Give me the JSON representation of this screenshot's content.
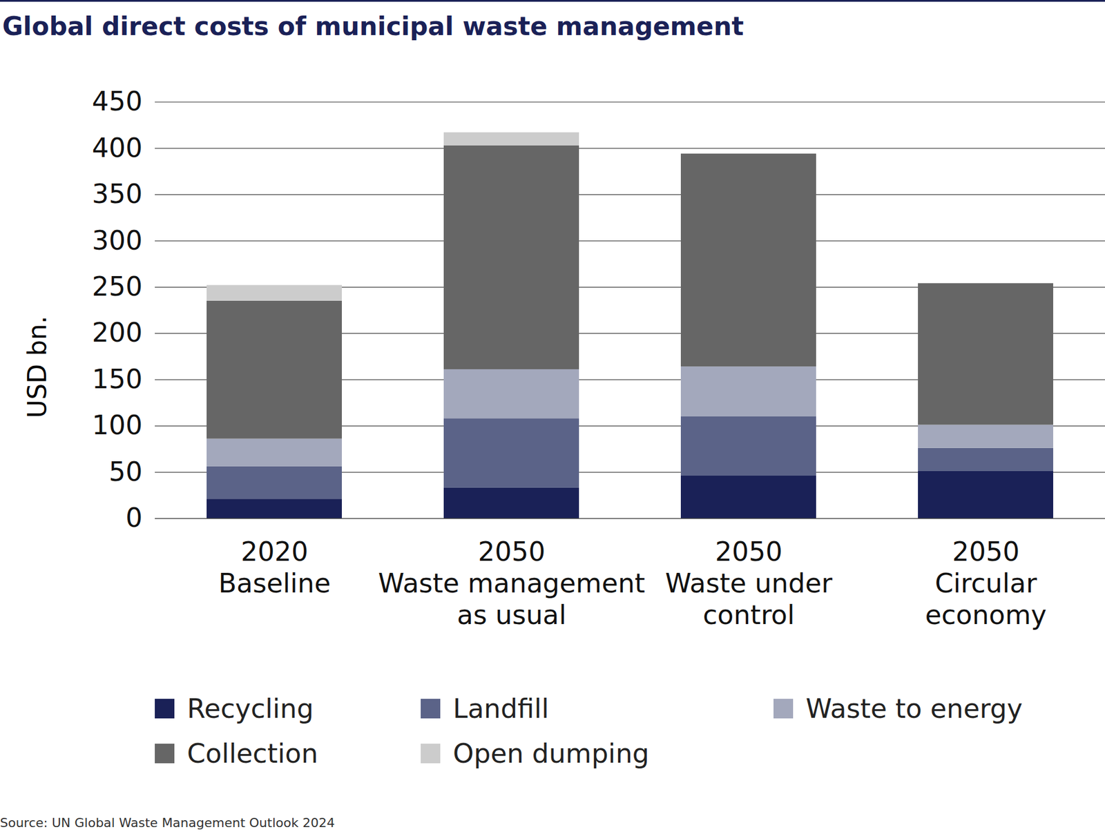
{
  "chart_data": {
    "type": "bar",
    "stacked": true,
    "title": "Global direct costs of municipal waste management",
    "y_label": "USD bn.",
    "source": "Source: UN Global Waste Management Outlook 2024",
    "categories": [
      "2020\nBaseline",
      "2050\nWaste management\nas usual",
      "2050\nWaste under\ncontrol",
      "2050\nCircular\neconomy"
    ],
    "series": [
      {
        "name": "Recycling",
        "color": "#1a2157",
        "values": [
          21,
          33,
          46,
          51
        ]
      },
      {
        "name": "Landfill",
        "color": "#5b6388",
        "values": [
          35,
          75,
          64,
          25
        ]
      },
      {
        "name": "Waste to energy",
        "color": "#a3a8bc",
        "values": [
          30,
          53,
          54,
          25
        ]
      },
      {
        "name": "Collection",
        "color": "#666666",
        "values": [
          149,
          242,
          230,
          153
        ]
      },
      {
        "name": "Open dumping",
        "color": "#cccccc",
        "values": [
          17,
          14,
          0,
          0
        ]
      }
    ],
    "ylim": [
      0,
      450
    ],
    "yticks": [
      0,
      50,
      100,
      150,
      200,
      250,
      300,
      350,
      400,
      450
    ],
    "grid": true,
    "legend": "bottom"
  }
}
